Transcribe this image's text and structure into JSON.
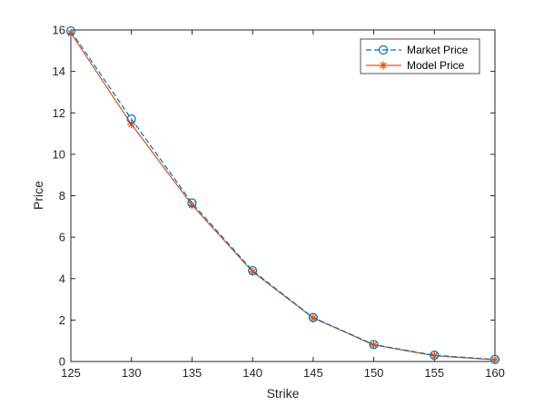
{
  "chart_data": {
    "type": "line",
    "title": "",
    "xlabel": "Strike",
    "ylabel": "Price",
    "xlim": [
      125,
      160
    ],
    "ylim": [
      0,
      16
    ],
    "xticks": [
      125,
      130,
      135,
      140,
      145,
      150,
      155,
      160
    ],
    "yticks": [
      0,
      2,
      4,
      6,
      8,
      10,
      12,
      14,
      16
    ],
    "grid": false,
    "legend_position": "top-right",
    "x": [
      125,
      130,
      135,
      140,
      145,
      150,
      155,
      160
    ],
    "series": [
      {
        "name": "Market Price",
        "values": [
          15.95,
          11.7,
          7.65,
          4.38,
          2.12,
          0.82,
          0.3,
          0.1
        ],
        "color": "#0072BD",
        "line_style": "dashed",
        "marker": "circle"
      },
      {
        "name": "Model Price",
        "values": [
          15.85,
          11.45,
          7.55,
          4.33,
          2.1,
          0.8,
          0.28,
          0.08
        ],
        "color": "#D95319",
        "line_style": "solid",
        "marker": "asterisk"
      }
    ]
  }
}
